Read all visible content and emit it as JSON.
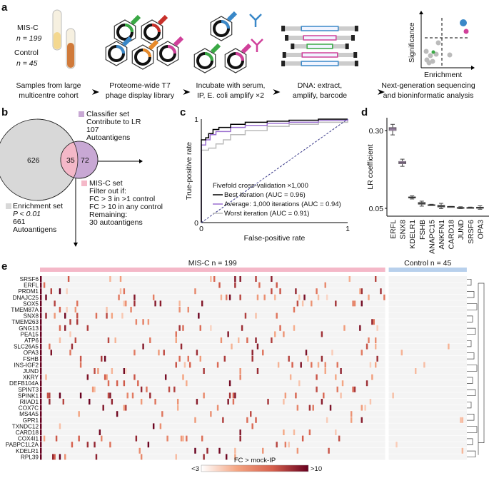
{
  "panel_a": {
    "label": "a",
    "cohort": {
      "misc": "MIS-C",
      "misc_n": "n = 199",
      "control": "Control",
      "control_n": "n = 45"
    },
    "steps": [
      [
        "Samples from large",
        "multicentre cohort"
      ],
      [
        "Proteome-wide T7",
        "phage display library"
      ],
      [
        "Incubate with serum,",
        "IP, E. coli amplify ×2"
      ],
      [
        "DNA: extract,",
        "amplify, barcode"
      ],
      [
        "Next-generation sequencing",
        "and bioninformatic analysis"
      ]
    ],
    "volcano": {
      "xlabel": "Enrichment",
      "ylabel": "Significance"
    },
    "colors": {
      "blue": "#3a88c8",
      "pink": "#d0409a",
      "green": "#3aa845",
      "orange": "#e88a2a",
      "red": "#c8302a"
    }
  },
  "panel_b": {
    "label": "b",
    "enrichment_only": "626",
    "overlap": "35",
    "classifier_only": "72",
    "classifier": [
      "Classifier set",
      "Contribute to LR",
      "107",
      "Autoantigens"
    ],
    "misc": [
      "MIS-C set",
      "Filter out if:",
      "FC > 3 in >1 control",
      "FC > 10 in any control",
      "Remaining:",
      "30 autoantigens"
    ],
    "enrichment": [
      "Enrichment set",
      "P < 0.01",
      "661",
      "Autoantigens"
    ],
    "colors": {
      "enrichment": "#d8d8d8",
      "classifier": "#c8a8d4",
      "misc": "#f4b8c8"
    }
  },
  "chart_data": [
    {
      "type": "line",
      "panel": "c",
      "xlabel": "False-positive rate",
      "ylabel": "True-positive rate",
      "xlim": [
        0,
        1
      ],
      "ylim": [
        0,
        1
      ],
      "xticks": [
        "0",
        "1"
      ],
      "yticks": [
        "0",
        "1"
      ],
      "legend_title": "Fivefold cross-validation ×1,000",
      "series": [
        {
          "name": "Best iteration (AUC = 0.96)",
          "color": "#000000",
          "x": [
            0,
            0,
            0.03,
            0.05,
            0.08,
            0.12,
            0.2,
            0.3,
            0.45,
            0.6,
            0.8,
            1
          ],
          "y": [
            0,
            0.8,
            0.82,
            0.86,
            0.9,
            0.92,
            0.95,
            0.97,
            0.98,
            0.99,
            1,
            1
          ]
        },
        {
          "name": "Average: 1,000 iterations  (AUC = 0.94)",
          "color": "#9b6fd0",
          "x": [
            0,
            0,
            0.03,
            0.06,
            0.1,
            0.2,
            0.3,
            0.45,
            0.6,
            0.8,
            1
          ],
          "y": [
            0,
            0.75,
            0.8,
            0.85,
            0.88,
            0.92,
            0.94,
            0.96,
            0.97,
            0.99,
            1
          ]
        },
        {
          "name": "Worst iteration (AUC = 0.91)",
          "color": "#bbbbbb",
          "x": [
            0,
            0,
            0.05,
            0.1,
            0.15,
            0.2,
            0.3,
            0.45,
            0.6,
            0.8,
            1
          ],
          "y": [
            0,
            0.7,
            0.72,
            0.76,
            0.8,
            0.85,
            0.89,
            0.93,
            0.95,
            0.97,
            1
          ]
        },
        {
          "name": "",
          "color": "#3a3a8a",
          "dashed": true,
          "x": [
            0,
            1
          ],
          "y": [
            0,
            1
          ]
        }
      ]
    },
    {
      "type": "box",
      "panel": "d",
      "ylabel": "LR coefficient",
      "yticks": [
        "0.30",
        "0.05"
      ],
      "ylim": [
        0.03,
        0.34
      ],
      "categories": [
        "ERFL",
        "SNX8",
        "KDELR1",
        "FSHB",
        "ANAPC15",
        "ANKFN1",
        "CARD18",
        "JUND",
        "SRSF6",
        "OPA3"
      ],
      "median": [
        0.305,
        0.197,
        0.085,
        0.066,
        0.061,
        0.057,
        0.056,
        0.052,
        0.052,
        0.052
      ],
      "q1": [
        0.3,
        0.193,
        0.083,
        0.063,
        0.06,
        0.054,
        0.055,
        0.051,
        0.051,
        0.05
      ],
      "q3": [
        0.31,
        0.201,
        0.087,
        0.069,
        0.062,
        0.06,
        0.056,
        0.053,
        0.053,
        0.054
      ],
      "low": [
        0.286,
        0.185,
        0.08,
        0.057,
        0.059,
        0.049,
        0.055,
        0.049,
        0.05,
        0.047
      ],
      "high": [
        0.32,
        0.208,
        0.09,
        0.073,
        0.063,
        0.066,
        0.056,
        0.055,
        0.054,
        0.058
      ],
      "colors": [
        "#c8a8d4",
        "#c8a8d4",
        "#666666",
        "#666666",
        "#666666",
        "#666666",
        "#666666",
        "#666666",
        "#666666",
        "#666666"
      ]
    },
    {
      "type": "heatmap",
      "panel": "e",
      "groups": [
        {
          "name": "MIS-C n = 199",
          "n": 199,
          "color": "#f4b8c8"
        },
        {
          "name": "Control n = 45",
          "n": 45,
          "color": "#b8d0ec"
        }
      ],
      "rows": [
        "SRSF6",
        "ERFL",
        "PRDM1",
        "DNAJC25",
        "SOX5",
        "TMEM87A",
        "SNX8",
        "TMEM263",
        "GNG13",
        "PEA15",
        "ATP6",
        "SLC26A5",
        "OPA3",
        "FSHB",
        "INS-IGF2",
        "JUND",
        "XKRY",
        "DEFB104A",
        "SPINT3",
        "SPINK1",
        "RIIAD1",
        "COX7C",
        "MS4A5",
        "GPR1",
        "TXNDC12",
        "CARD18",
        "COX4I1",
        "PABPC1L2A",
        "KDELR1",
        "RPL39"
      ],
      "colorbar": {
        "title": "FC > mock-IP",
        "min_label": "<3",
        "max_label": ">10",
        "colors": [
          "#ffffff",
          "#f4a582",
          "#d6604d",
          "#67001f"
        ]
      }
    }
  ]
}
